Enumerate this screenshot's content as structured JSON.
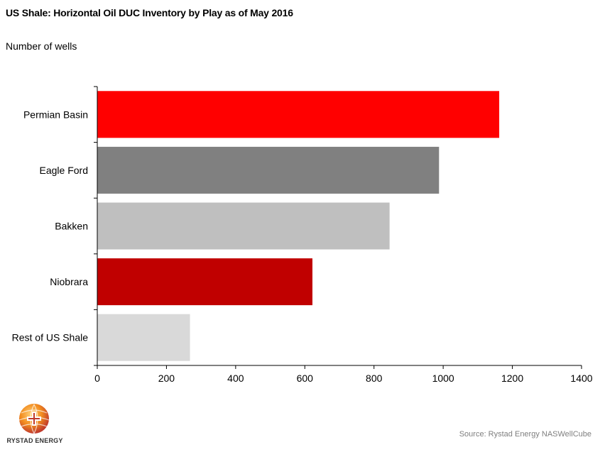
{
  "header": {
    "title": "US Shale: Horizontal Oil DUC Inventory by Play as of May 2016",
    "unit_label": "Number of wells"
  },
  "chart_data": {
    "type": "bar",
    "orientation": "horizontal",
    "title": "US Shale: Horizontal Oil DUC Inventory by Play as of May 2016",
    "ylabel": "Number of wells",
    "xlabel": "",
    "categories": [
      "Permian Basin",
      "Eagle Ford",
      "Bakken",
      "Niobrara",
      "Rest of US Shale"
    ],
    "values": [
      1162,
      988,
      845,
      622,
      268
    ],
    "colors": [
      "#ff0000",
      "#808080",
      "#bfbfbf",
      "#c00000",
      "#d9d9d9"
    ],
    "xlim": [
      0,
      1400
    ],
    "xticks": [
      0,
      200,
      400,
      600,
      800,
      1000,
      1200,
      1400
    ],
    "grid": false,
    "legend": "none"
  },
  "footer": {
    "source": "Source: Rystad Energy NASWellCube",
    "logo_text": "RYSTAD ENERGY"
  }
}
